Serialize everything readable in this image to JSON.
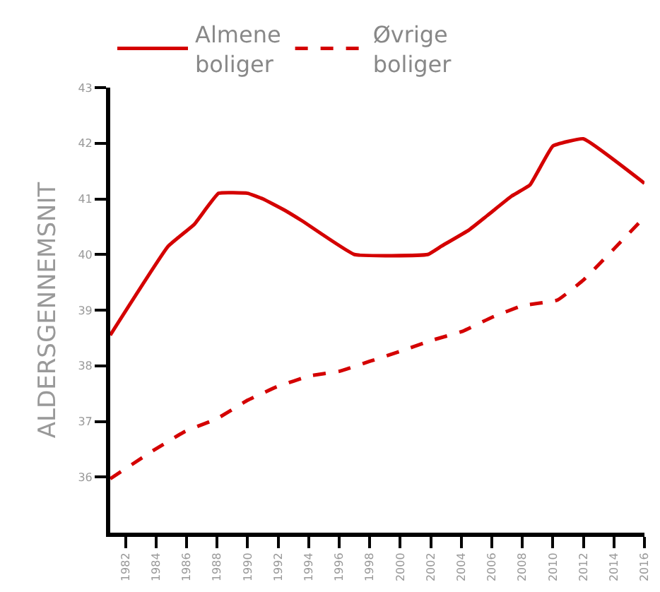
{
  "chart_data": {
    "type": "line",
    "ylabel": "ALDERSGENNEMSNIT",
    "xlim": [
      1981,
      2016
    ],
    "xticks": [
      1982,
      1984,
      1986,
      1988,
      1990,
      1992,
      1994,
      1996,
      1998,
      2000,
      2002,
      2004,
      2006,
      2008,
      2010,
      2012,
      2014,
      2016
    ],
    "ylim": [
      35,
      43
    ],
    "yticks": [
      36,
      37,
      38,
      39,
      40,
      41,
      42,
      43
    ],
    "legend": "top",
    "marker": "none",
    "series": [
      {
        "name": "Almene boliger",
        "color": "#d40000",
        "line_style": "solid",
        "x": [
          1981,
          1984.8,
          1986.5,
          1988.1,
          1990,
          1991,
          1992.4,
          1993.6,
          1997,
          2001.8,
          2002.7,
          2004.5,
          2005.7,
          2007.3,
          2008.5,
          2010,
          2012,
          2016
        ],
        "values": [
          38.55,
          40.15,
          40.54,
          41.1,
          41.1,
          41.0,
          40.8,
          40.6,
          40.0,
          40.0,
          40.15,
          40.44,
          40.7,
          41.05,
          41.25,
          41.95,
          42.08,
          41.28
        ]
      },
      {
        "name": "Øvrige boliger",
        "color": "#d40000",
        "line_style": "dashed",
        "x": [
          1981,
          1983.9,
          1985.9,
          1988,
          1990,
          1991.9,
          1994.1,
          1996,
          1998,
          2000,
          2002.1,
          2004.1,
          2006,
          2008,
          2010.3,
          2012,
          2014,
          2016
        ],
        "values": [
          35.97,
          36.49,
          36.82,
          37.05,
          37.38,
          37.62,
          37.82,
          37.9,
          38.08,
          38.26,
          38.46,
          38.62,
          38.87,
          39.08,
          39.18,
          39.54,
          40.1,
          40.67
        ]
      }
    ]
  }
}
